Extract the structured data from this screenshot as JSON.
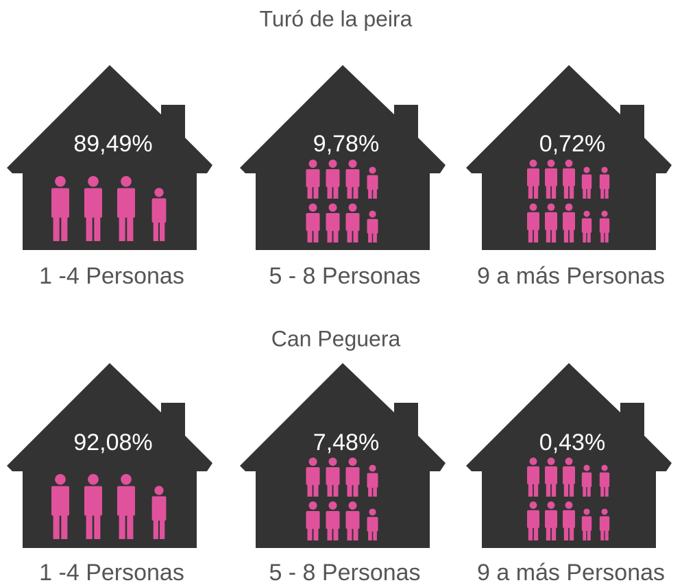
{
  "sections": [
    {
      "title": "Turó de la peira",
      "houses": [
        {
          "value": "89,49%",
          "label": "1 -4 Personas"
        },
        {
          "value": "9,78%",
          "label": "5 - 8 Personas"
        },
        {
          "value": "0,72%",
          "label": "9 a más Personas"
        }
      ]
    },
    {
      "title": "Can Peguera",
      "houses": [
        {
          "value": "92,08%",
          "label": "1 -4 Personas"
        },
        {
          "value": "7,48%",
          "label": "5 - 8 Personas"
        },
        {
          "value": "0,43%",
          "label": "9 a más Personas"
        }
      ]
    }
  ]
}
